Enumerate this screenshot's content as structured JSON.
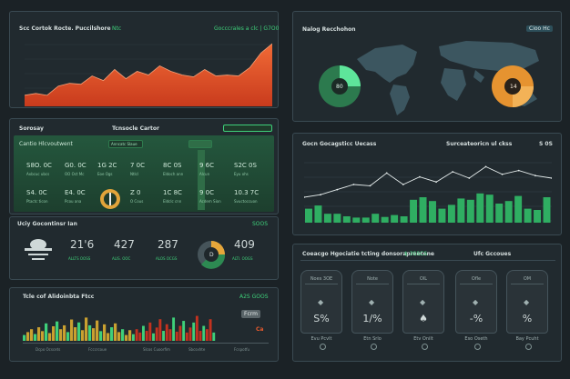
{
  "colors": {
    "accent": "#3ed07a",
    "orange": "#ea5b2d",
    "gold": "#c9a030",
    "bg": "#1b2226",
    "panel": "#212a2f"
  },
  "area_panel": {
    "title": "Scc Cortok Rocte. Puccilshore",
    "tag": "Ntc",
    "right": "Gocccrales a clc | G7O0"
  },
  "map_panel": {
    "title": "Nalog Recchohon",
    "button": "Cioo Hc",
    "donut_left": "80",
    "donut_right": "14"
  },
  "summary": {
    "title": "Sorosay",
    "center": "Tcnsocle Cartor",
    "header": "Cantio Hlcvoutwent",
    "header_tag": "Anncatc Slaue",
    "row1": [
      {
        "v": "S8O. 0C",
        "s": "Axbcuc ubcs"
      },
      {
        "v": "G0. 0C",
        "s": "OO Oct Mc"
      },
      {
        "v": "1G 2C",
        "s": "Eoe Ogs"
      },
      {
        "v": "7 0C",
        "s": "Ntlcl"
      },
      {
        "v": "8C 0S",
        "s": "Eldoch ann"
      },
      {
        "v": "9 6C",
        "s": "Alcun"
      },
      {
        "v": "S2C 0S",
        "s": "Eyu ohs"
      }
    ],
    "row2": [
      {
        "v": "S4. 0C",
        "s": "Ptactc ticon"
      },
      {
        "v": "E4. 0C",
        "s": "Pcou ana"
      },
      {
        "v": "Z 0",
        "s": "O Cous"
      },
      {
        "v": "1C 8C",
        "s": "Eldclc cnn"
      },
      {
        "v": "9 0C",
        "s": "Acdem Sion"
      },
      {
        "v": "10.3 7C",
        "s": "Svuctoccuon"
      }
    ]
  },
  "stats": {
    "title": "Uciy Gocontinsr Ian",
    "tag": "SOOS",
    "items": [
      {
        "v": "21'6",
        "s": "ALLTS OOSS"
      },
      {
        "v": "427",
        "s": "ALIS. OOC"
      },
      {
        "v": "287",
        "s": "ALOS OCGS"
      },
      {
        "v": "409",
        "s": "ALTI. OOGS"
      }
    ],
    "gauge": "D"
  },
  "bars_panel": {
    "title": "Tcle cof Alidoinbta Ftcc",
    "right": "A2S GOOS",
    "button": "Fcrm",
    "badge": "Ca",
    "labels": [
      "Dcpo Ocscets",
      "Fcccrcoue",
      "Slcos Cuoorfim",
      "Sbcsxhte",
      "Fcspotfu"
    ]
  },
  "mid_chart": {
    "title": "Gocn Gocagsticc Uecass",
    "right": "Surceateoricn ul ckss",
    "right2": "S 0S"
  },
  "cards_panel": {
    "title": "Coeacgo Hgociatie tcting donsorapreetene",
    "title_tag": "$ 3SSCS",
    "right": "Ufc Gccoues",
    "cards": [
      {
        "lb": "Noes 3OE",
        "val": "S%",
        "ft": "Evu Pcvlt"
      },
      {
        "lb": "Note",
        "val": "1/%",
        "ft": "Etn Srlo"
      },
      {
        "lb": "OIL",
        "val": "♠",
        "ft": "Etv Onilt"
      },
      {
        "lb": "Ofle",
        "val": "-%",
        "ft": "Eso Oseth"
      },
      {
        "lb": "OM",
        "val": "%",
        "ft": "Bay Pcuht"
      }
    ]
  },
  "chart_data": [
    {
      "type": "area",
      "values": [
        12,
        14,
        12,
        22,
        25,
        24,
        33,
        28,
        40,
        30,
        38,
        34,
        44,
        38,
        34,
        32,
        40,
        33,
        34,
        33,
        42,
        58,
        68
      ],
      "ylim": [
        0,
        75
      ]
    },
    {
      "type": "bar",
      "values": [
        22,
        27,
        14,
        14,
        10,
        8,
        8,
        14,
        9,
        12,
        10,
        36,
        40,
        34,
        22,
        28,
        38,
        36,
        46,
        44,
        30,
        34,
        42,
        22,
        20,
        40
      ],
      "line": [
        40,
        44,
        52,
        60,
        58,
        78,
        60,
        72,
        64,
        80,
        70,
        88,
        76,
        82,
        74,
        70
      ],
      "ylim": [
        0,
        100
      ]
    },
    {
      "type": "bar",
      "values": [
        6,
        9,
        12,
        7,
        14,
        10,
        18,
        8,
        15,
        20,
        12,
        16,
        9,
        22,
        14,
        19,
        11,
        24,
        16,
        13,
        21,
        10,
        17,
        8,
        14,
        18,
        9,
        12,
        6,
        11
      ],
      "ylim": [
        0,
        30
      ]
    },
    {
      "type": "bar",
      "values": [
        8,
        14,
        10,
        18,
        12,
        22,
        9,
        16,
        26,
        12,
        20,
        14,
        28,
        11,
        18,
        24,
        10,
        16,
        22,
        30,
        12,
        18,
        14,
        26,
        10
      ],
      "ylim": [
        0,
        35
      ]
    }
  ]
}
